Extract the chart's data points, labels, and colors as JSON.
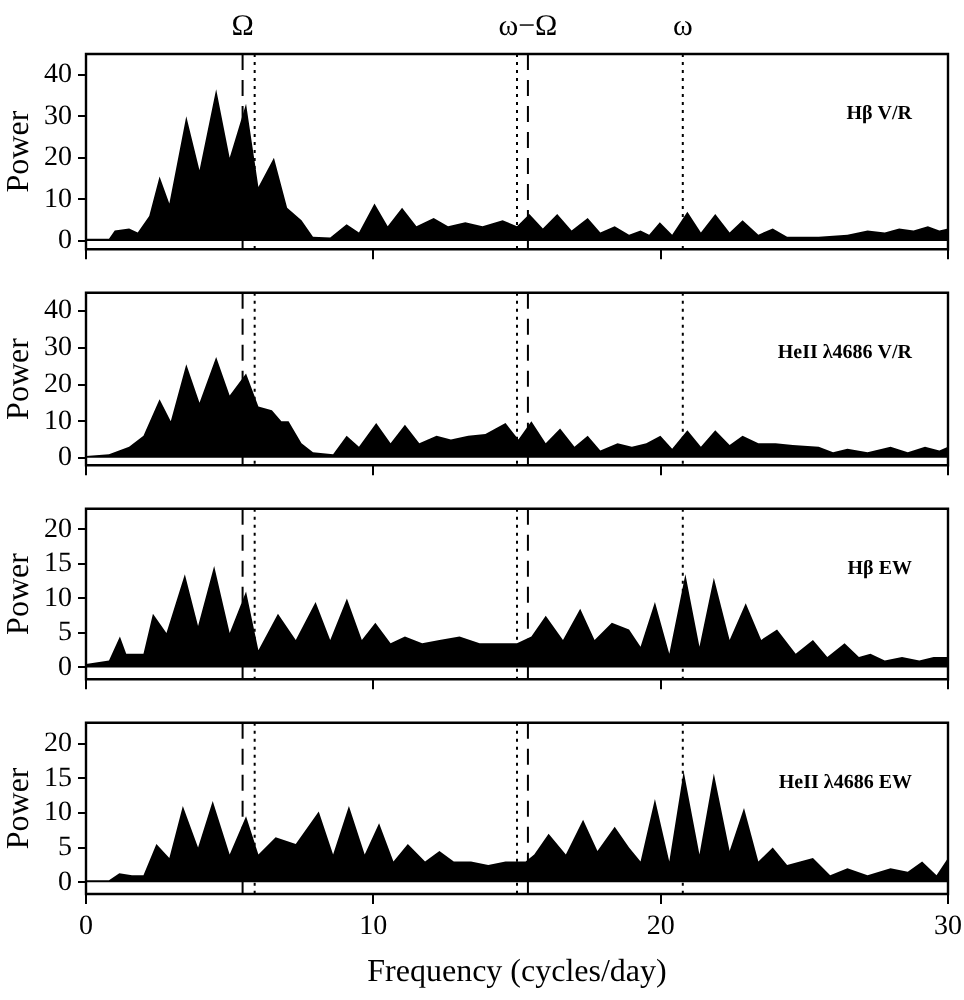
{
  "chart_data": [
    {
      "type": "area",
      "ylabel": "Power",
      "annotations": [
        "Hβ V/R"
      ],
      "xlim": [
        0,
        30
      ],
      "xticks": [
        0,
        10,
        20,
        30
      ],
      "ylim": [
        -2,
        45
      ],
      "yticks": [
        0,
        10,
        20,
        30,
        40
      ],
      "tick_labels": "y",
      "grid": false,
      "legend": false,
      "ref_lines": [
        {
          "axis": "x",
          "value": 5.45,
          "label": "Ω",
          "line_style": "dashed"
        },
        {
          "axis": "x",
          "value": 5.87,
          "line_style": "dotted"
        },
        {
          "axis": "x",
          "value": 15.0,
          "line_style": "dotted"
        },
        {
          "axis": "x",
          "value": 15.38,
          "label": "ω−Ω",
          "line_style": "dashed"
        },
        {
          "axis": "x",
          "value": 20.77,
          "label": "ω",
          "line_style": "dotted"
        }
      ],
      "series": [
        {
          "color": "#000000",
          "x": [
            0,
            0.8,
            1.0,
            1.5,
            1.8,
            2.2,
            2.56,
            2.9,
            3.49,
            3.95,
            4.53,
            5.0,
            5.57,
            6.0,
            6.54,
            7.0,
            7.5,
            7.9,
            8.5,
            9.07,
            9.5,
            10.04,
            10.5,
            11.0,
            11.5,
            12.1,
            12.6,
            13.2,
            13.8,
            14.5,
            15.0,
            15.43,
            15.9,
            16.4,
            16.9,
            17.46,
            17.9,
            18.4,
            18.9,
            19.3,
            19.6,
            19.97,
            20.4,
            20.93,
            21.4,
            21.9,
            22.4,
            22.85,
            23.4,
            23.9,
            24.4,
            25.5,
            26.5,
            27.2,
            27.8,
            28.3,
            28.8,
            29.3,
            29.7,
            30
          ],
          "values": [
            0.5,
            0.5,
            2.5,
            3,
            2,
            6,
            15.5,
            9,
            30,
            17,
            36.5,
            20,
            33,
            13,
            20,
            8,
            5,
            1,
            0.8,
            4,
            2,
            9,
            3.5,
            8,
            3.5,
            5.5,
            3.5,
            4.5,
            3.5,
            5,
            3.5,
            6.5,
            3,
            6.5,
            2.5,
            5.5,
            2,
            3.5,
            1.5,
            2.5,
            1.5,
            4.5,
            1.5,
            7,
            2,
            6.5,
            2,
            5,
            1.5,
            3,
            1,
            1,
            1.5,
            2.5,
            2,
            3,
            2.5,
            3.5,
            2.5,
            3
          ]
        }
      ]
    },
    {
      "type": "area",
      "ylabel": "Power",
      "annotations": [
        "HeII λ4686 V/R"
      ],
      "xlim": [
        0,
        30
      ],
      "xticks": [
        0,
        10,
        20,
        30
      ],
      "ylim": [
        -2,
        45
      ],
      "yticks": [
        0,
        10,
        20,
        30,
        40
      ],
      "tick_labels": "y",
      "grid": false,
      "legend": false,
      "ref_lines": [
        {
          "axis": "x",
          "value": 5.45,
          "line_style": "dashed"
        },
        {
          "axis": "x",
          "value": 5.87,
          "line_style": "dotted"
        },
        {
          "axis": "x",
          "value": 15.0,
          "line_style": "dotted"
        },
        {
          "axis": "x",
          "value": 15.38,
          "line_style": "dashed"
        },
        {
          "axis": "x",
          "value": 20.77,
          "line_style": "dotted"
        }
      ],
      "series": [
        {
          "color": "#000000",
          "x": [
            0,
            0.8,
            1.5,
            2.0,
            2.56,
            2.95,
            3.49,
            3.95,
            4.53,
            5.0,
            5.57,
            6.0,
            6.47,
            6.8,
            7.05,
            7.5,
            7.9,
            8.6,
            9.07,
            9.5,
            10.1,
            10.6,
            11.1,
            11.6,
            12.2,
            12.7,
            13.3,
            13.9,
            14.6,
            15.05,
            15.5,
            16.0,
            16.5,
            17.0,
            17.46,
            17.9,
            18.5,
            19.0,
            19.5,
            19.99,
            20.4,
            20.93,
            21.4,
            21.9,
            22.4,
            22.85,
            23.4,
            24.0,
            24.6,
            25.5,
            26.0,
            26.5,
            27.2,
            28.0,
            28.6,
            29.2,
            29.7,
            30
          ],
          "values": [
            0.5,
            1,
            3,
            6,
            16,
            10,
            25.5,
            15,
            27.5,
            17,
            23,
            14,
            13,
            10,
            10,
            4,
            1.5,
            1,
            6,
            3,
            9.5,
            4,
            9,
            4,
            6,
            5,
            6,
            6.5,
            9.5,
            5,
            10,
            4,
            8,
            3,
            6,
            2,
            4,
            3,
            4,
            6,
            2.5,
            7.5,
            3,
            7.5,
            3.5,
            6,
            4,
            4,
            3.5,
            3,
            1.5,
            2.5,
            1.5,
            3,
            1.5,
            3,
            2,
            3
          ]
        }
      ]
    },
    {
      "type": "area",
      "ylabel": "Power",
      "annotations": [
        "Hβ EW"
      ],
      "xlim": [
        0,
        30
      ],
      "xticks": [
        0,
        10,
        20,
        30
      ],
      "ylim": [
        -1.7,
        23
      ],
      "yticks": [
        0,
        5,
        10,
        15,
        20
      ],
      "tick_labels": "y",
      "grid": false,
      "legend": false,
      "ref_lines": [
        {
          "axis": "x",
          "value": 5.45,
          "line_style": "dashed"
        },
        {
          "axis": "x",
          "value": 5.87,
          "line_style": "dotted"
        },
        {
          "axis": "x",
          "value": 15.0,
          "line_style": "dotted"
        },
        {
          "axis": "x",
          "value": 15.38,
          "line_style": "dashed"
        },
        {
          "axis": "x",
          "value": 20.77,
          "line_style": "dotted"
        }
      ],
      "series": [
        {
          "color": "#000000",
          "x": [
            0,
            0.8,
            1.18,
            1.4,
            2.0,
            2.33,
            2.8,
            3.44,
            3.9,
            4.46,
            5.0,
            5.57,
            6.0,
            6.68,
            7.3,
            7.99,
            8.5,
            9.08,
            9.6,
            10.07,
            10.6,
            11.1,
            11.7,
            12.3,
            13.0,
            13.7,
            14.3,
            15.0,
            15.5,
            16.0,
            16.6,
            17.2,
            17.7,
            18.3,
            18.9,
            19.3,
            19.8,
            20.3,
            20.86,
            21.35,
            21.85,
            22.4,
            22.96,
            23.5,
            24.05,
            24.7,
            25.3,
            25.8,
            26.4,
            26.9,
            27.3,
            27.8,
            28.4,
            29.0,
            29.5,
            30
          ],
          "values": [
            0.5,
            1,
            4.5,
            2,
            2,
            7.8,
            5,
            13.5,
            6,
            14.7,
            5,
            11,
            2.5,
            7.8,
            4,
            9.5,
            4,
            10,
            4,
            6.5,
            3.5,
            4.5,
            3.5,
            4,
            4.5,
            3.5,
            3.5,
            3.5,
            4.5,
            7.5,
            4,
            8.5,
            4,
            6.5,
            5.5,
            3,
            9.5,
            2,
            13.5,
            3,
            13,
            4,
            9.3,
            4,
            5.5,
            2,
            4,
            1.5,
            3.5,
            1.5,
            2,
            1,
            1.5,
            1,
            1.5,
            1.5
          ]
        }
      ]
    },
    {
      "type": "area",
      "xlabel": "Frequency (cycles/day)",
      "ylabel": "Power",
      "annotations": [
        "HeII λ4686 EW"
      ],
      "xlim": [
        0,
        30
      ],
      "xticks": [
        0,
        10,
        20,
        30
      ],
      "ylim": [
        -1.7,
        23
      ],
      "yticks": [
        0,
        5,
        10,
        15,
        20
      ],
      "grid": false,
      "legend": false,
      "ref_lines": [
        {
          "axis": "x",
          "value": 5.45,
          "line_style": "dashed"
        },
        {
          "axis": "x",
          "value": 5.87,
          "line_style": "dotted"
        },
        {
          "axis": "x",
          "value": 15.0,
          "line_style": "dotted"
        },
        {
          "axis": "x",
          "value": 15.38,
          "line_style": "dashed"
        },
        {
          "axis": "x",
          "value": 20.77,
          "line_style": "dotted"
        }
      ],
      "series": [
        {
          "color": "#000000",
          "x": [
            0,
            0.8,
            1.16,
            1.6,
            2.0,
            2.45,
            2.9,
            3.37,
            3.9,
            4.41,
            5.0,
            5.57,
            6.0,
            6.6,
            7.3,
            8.1,
            8.6,
            9.15,
            9.7,
            10.2,
            10.7,
            11.2,
            11.8,
            12.3,
            12.8,
            13.4,
            14.0,
            14.6,
            15.3,
            15.6,
            16.1,
            16.7,
            17.3,
            17.8,
            18.4,
            18.9,
            19.3,
            19.8,
            20.3,
            20.8,
            21.35,
            21.85,
            22.4,
            22.9,
            23.4,
            23.9,
            24.4,
            25.3,
            25.9,
            26.5,
            27.2,
            28.0,
            28.6,
            29.1,
            29.6,
            30
          ],
          "values": [
            0.3,
            0.3,
            1.3,
            1,
            1,
            5.5,
            3.5,
            11,
            5,
            11.7,
            4,
            9.5,
            4,
            6.5,
            5.5,
            10.2,
            4,
            11,
            4,
            8.5,
            3,
            5.5,
            3,
            4.5,
            3,
            3,
            2.5,
            3,
            3,
            4,
            7,
            4,
            9,
            4.5,
            8,
            5,
            3,
            12,
            3,
            16,
            4,
            15.7,
            4.5,
            10.7,
            3,
            5,
            2.5,
            3.5,
            1,
            2,
            1,
            2,
            1.5,
            3,
            1,
            3.5
          ]
        }
      ]
    }
  ]
}
